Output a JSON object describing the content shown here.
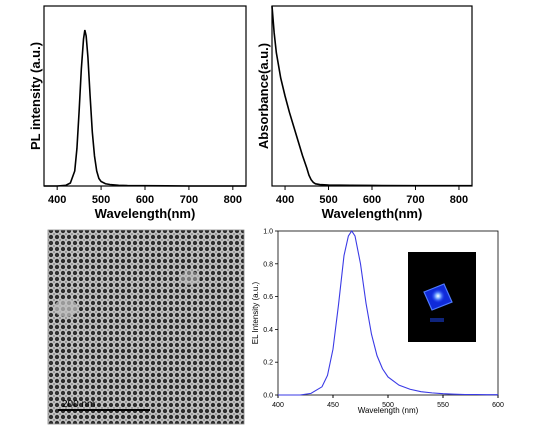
{
  "chart_data": [
    {
      "type": "line",
      "xlabel": "Wavelength(nm)",
      "ylabel": "PL intensity (a.u.)",
      "xlim": [
        370,
        830
      ],
      "ylim": [
        0,
        1.2
      ],
      "xticks": [
        400,
        500,
        600,
        700,
        800
      ],
      "xtick_labels": [
        "400",
        "500",
        "600",
        "700",
        "800"
      ],
      "y_tick_labels_shown": false,
      "grid": false,
      "line_color": "#000000",
      "series": [
        {
          "x": [
            370,
            400,
            420,
            430,
            440,
            445,
            450,
            455,
            460,
            463,
            466,
            470,
            475,
            480,
            485,
            490,
            495,
            500,
            510,
            520,
            540,
            560,
            600,
            650,
            700,
            750,
            800,
            830
          ],
          "y": [
            0,
            0,
            0.005,
            0.02,
            0.1,
            0.25,
            0.5,
            0.78,
            0.98,
            1.04,
            1.0,
            0.86,
            0.6,
            0.36,
            0.2,
            0.1,
            0.05,
            0.03,
            0.015,
            0.01,
            0.005,
            0.003,
            0.002,
            0.001,
            0,
            0,
            0,
            0
          ]
        }
      ]
    },
    {
      "type": "line",
      "xlabel": "Wavelength(nm)",
      "ylabel": "Absorbance(a.u.)",
      "xlim": [
        370,
        830
      ],
      "ylim": [
        0,
        1
      ],
      "xticks": [
        400,
        500,
        600,
        700,
        800
      ],
      "xtick_labels": [
        "400",
        "500",
        "600",
        "700",
        "800"
      ],
      "y_tick_labels_shown": false,
      "grid": false,
      "line_color": "#000000",
      "series": [
        {
          "x": [
            370,
            375,
            380,
            390,
            400,
            410,
            420,
            430,
            440,
            450,
            455,
            460,
            465,
            470,
            480,
            500,
            550,
            600,
            700,
            800,
            830
          ],
          "y": [
            1.02,
            0.85,
            0.74,
            0.6,
            0.5,
            0.41,
            0.33,
            0.25,
            0.17,
            0.1,
            0.06,
            0.035,
            0.02,
            0.012,
            0.008,
            0.005,
            0.004,
            0.003,
            0.002,
            0.002,
            0.002
          ]
        }
      ]
    },
    {
      "type": "line",
      "xlabel": "Wavelength (nm)",
      "ylabel": "EL Intensity (a.u.)",
      "xlim": [
        400,
        600
      ],
      "ylim": [
        0,
        1
      ],
      "xticks": [
        400,
        450,
        500,
        550,
        600
      ],
      "xtick_labels": [
        "400",
        "450",
        "500",
        "550",
        "600"
      ],
      "yticks": [
        0.0,
        0.2,
        0.4,
        0.6,
        0.8,
        1.0
      ],
      "ytick_labels": [
        "0.0",
        "0.2",
        "0.4",
        "0.6",
        "0.8",
        "1.0"
      ],
      "grid": false,
      "line_color": "#3a3ae6",
      "inset": "photo of glowing blue device",
      "series": [
        {
          "x": [
            400,
            420,
            430,
            440,
            445,
            450,
            455,
            460,
            464,
            467,
            470,
            475,
            480,
            485,
            490,
            495,
            500,
            510,
            520,
            530,
            540,
            550,
            560,
            570,
            580,
            590,
            600
          ],
          "y": [
            0.0,
            0.0,
            0.01,
            0.05,
            0.12,
            0.28,
            0.55,
            0.85,
            0.97,
            1.0,
            0.97,
            0.8,
            0.56,
            0.37,
            0.24,
            0.16,
            0.11,
            0.06,
            0.035,
            0.02,
            0.013,
            0.008,
            0.005,
            0.003,
            0.003,
            0.002,
            0.002
          ]
        }
      ]
    }
  ],
  "tem_image": {
    "scale_bar_label": "200 nm"
  }
}
